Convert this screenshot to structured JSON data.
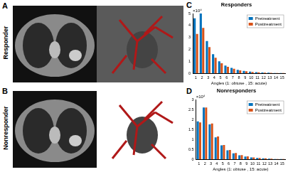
{
  "panels": [
    {
      "label": "A",
      "row_label": "Responder"
    },
    {
      "label": "B",
      "row_label": "Nonresponder"
    }
  ],
  "chart_data": [
    {
      "type": "bar",
      "panel_label": "C",
      "title": "Responders",
      "annotation": "×10⁴",
      "x_label": "Angles (1: obtuse , 15: acute)",
      "categories": [
        "1",
        "2",
        "3",
        "4",
        "5",
        "6",
        "7",
        "8",
        "9",
        "10",
        "11",
        "12",
        "13",
        "14",
        "15"
      ],
      "series": [
        {
          "name": "Pretreatment",
          "color": "#0072bd",
          "values": [
            4.6,
            5.0,
            2.7,
            1.6,
            1.0,
            0.65,
            0.45,
            0.3,
            0.2,
            0.15,
            0.1,
            0.07,
            0.05,
            0.03,
            0.02
          ]
        },
        {
          "name": "Posttreatment",
          "color": "#d95319",
          "values": [
            3.3,
            3.8,
            2.2,
            1.3,
            0.85,
            0.55,
            0.38,
            0.25,
            0.17,
            0.12,
            0.08,
            0.06,
            0.04,
            0.03,
            0.02
          ]
        }
      ],
      "ylim": [
        0,
        5
      ],
      "yticks": [
        0,
        1,
        2,
        3,
        4,
        5
      ],
      "grid": false,
      "legend": "upper right"
    },
    {
      "type": "bar",
      "panel_label": "D",
      "title": "Nonresponders",
      "annotation": "×10⁴",
      "x_label": "Angles (1: obtuse , 15: acute)",
      "categories": [
        "1",
        "2",
        "3",
        "4",
        "5",
        "6",
        "7",
        "8",
        "9",
        "10",
        "11",
        "12",
        "13",
        "14",
        "15"
      ],
      "series": [
        {
          "name": "Pretreatment",
          "color": "#0072bd",
          "values": [
            1.9,
            2.6,
            1.75,
            1.1,
            0.7,
            0.45,
            0.3,
            0.2,
            0.14,
            0.1,
            0.07,
            0.05,
            0.03,
            0.02,
            0.015
          ]
        },
        {
          "name": "Posttreatment",
          "color": "#d95319",
          "values": [
            1.85,
            2.6,
            1.8,
            1.15,
            0.72,
            0.47,
            0.32,
            0.21,
            0.15,
            0.1,
            0.07,
            0.05,
            0.035,
            0.02,
            0.015
          ]
        }
      ],
      "ylim": [
        0,
        3
      ],
      "yticks": [
        0,
        0.5,
        1,
        1.5,
        2,
        2.5,
        3
      ],
      "grid": false,
      "legend": "upper right"
    }
  ]
}
